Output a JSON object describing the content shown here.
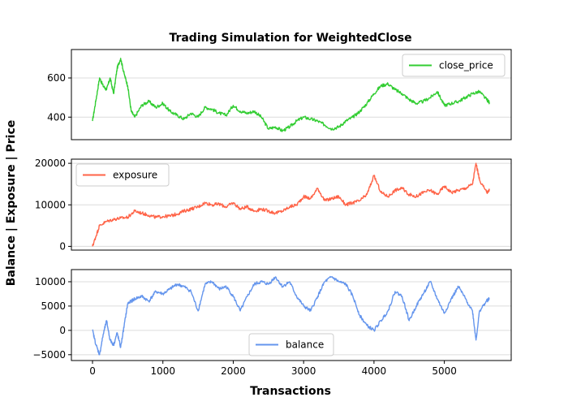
{
  "figure": {
    "title": "Trading Simulation for WeightedClose",
    "xlabel": "Transactions",
    "ylabel": "Balance | Exposure | Price"
  },
  "chart_data": [
    {
      "type": "line",
      "series": [
        {
          "name": "close_price",
          "color": "#32cd32"
        }
      ],
      "legend": "upper-right",
      "xlim": [
        -300,
        5950
      ],
      "ylim": [
        285,
        745
      ],
      "yticks": [
        400,
        600
      ],
      "grid": "horizontal",
      "x": [
        0,
        50,
        100,
        150,
        200,
        250,
        300,
        350,
        400,
        450,
        500,
        550,
        600,
        700,
        800,
        900,
        1000,
        1100,
        1200,
        1300,
        1400,
        1500,
        1600,
        1700,
        1800,
        1900,
        2000,
        2100,
        2200,
        2300,
        2400,
        2500,
        2600,
        2700,
        2800,
        2900,
        3000,
        3100,
        3200,
        3300,
        3400,
        3500,
        3600,
        3700,
        3800,
        3900,
        4000,
        4100,
        4200,
        4300,
        4400,
        4500,
        4600,
        4700,
        4800,
        4900,
        5000,
        5100,
        5200,
        5300,
        5400,
        5500,
        5600,
        5640
      ],
      "values": [
        380,
        490,
        600,
        560,
        540,
        600,
        520,
        650,
        700,
        620,
        560,
        430,
        400,
        460,
        480,
        450,
        470,
        430,
        410,
        390,
        420,
        400,
        450,
        440,
        420,
        410,
        460,
        430,
        420,
        430,
        400,
        340,
        350,
        330,
        350,
        380,
        400,
        390,
        380,
        360,
        340,
        350,
        380,
        400,
        430,
        470,
        520,
        560,
        570,
        540,
        520,
        490,
        470,
        480,
        500,
        530,
        460,
        470,
        480,
        500,
        520,
        530,
        490,
        475
      ]
    },
    {
      "type": "line",
      "series": [
        {
          "name": "exposure",
          "color": "#ff6347"
        }
      ],
      "legend": "upper-left",
      "xlim": [
        -300,
        5950
      ],
      "ylim": [
        -900,
        21000
      ],
      "yticks": [
        0,
        10000,
        20000
      ],
      "grid": "horizontal",
      "x": [
        0,
        50,
        100,
        200,
        300,
        400,
        500,
        600,
        700,
        800,
        900,
        1000,
        1100,
        1200,
        1300,
        1400,
        1500,
        1600,
        1700,
        1800,
        1900,
        2000,
        2100,
        2200,
        2300,
        2400,
        2500,
        2600,
        2700,
        2800,
        2900,
        3000,
        3100,
        3200,
        3300,
        3400,
        3500,
        3600,
        3700,
        3800,
        3900,
        4000,
        4100,
        4200,
        4300,
        4400,
        4500,
        4600,
        4700,
        4800,
        4900,
        5000,
        5100,
        5200,
        5300,
        5400,
        5450,
        5500,
        5600,
        5640
      ],
      "values": [
        0,
        2500,
        5000,
        6000,
        6500,
        6800,
        7000,
        8500,
        8000,
        7500,
        7000,
        7200,
        7300,
        7800,
        8500,
        9000,
        9500,
        10500,
        10000,
        10200,
        9500,
        10500,
        9000,
        9500,
        8500,
        9000,
        8500,
        8000,
        8500,
        9500,
        10000,
        12000,
        11500,
        14000,
        11000,
        11500,
        12000,
        10000,
        10500,
        11000,
        12500,
        17000,
        13000,
        12000,
        13500,
        14000,
        12500,
        12000,
        13000,
        13500,
        12500,
        14500,
        13000,
        13500,
        14000,
        15000,
        20000,
        16000,
        13000,
        13500
      ]
    },
    {
      "type": "line",
      "series": [
        {
          "name": "balance",
          "color": "#6495ed"
        }
      ],
      "legend": "lower-center",
      "xlim": [
        -300,
        5950
      ],
      "ylim": [
        -6200,
        12500
      ],
      "yticks": [
        -5000,
        0,
        5000,
        10000
      ],
      "grid": "horizontal",
      "xticks": [
        0,
        1000,
        2000,
        3000,
        4000,
        5000
      ],
      "x": [
        0,
        50,
        100,
        150,
        200,
        250,
        300,
        350,
        400,
        450,
        500,
        550,
        600,
        700,
        800,
        900,
        1000,
        1100,
        1200,
        1300,
        1400,
        1500,
        1600,
        1700,
        1800,
        1900,
        2000,
        2100,
        2200,
        2300,
        2400,
        2500,
        2600,
        2700,
        2800,
        2900,
        3000,
        3100,
        3200,
        3300,
        3400,
        3500,
        3600,
        3700,
        3800,
        3900,
        4000,
        4100,
        4200,
        4300,
        4400,
        4500,
        4600,
        4700,
        4800,
        4900,
        5000,
        5100,
        5200,
        5300,
        5400,
        5450,
        5500,
        5600,
        5640
      ],
      "values": [
        0,
        -3000,
        -5000,
        -1000,
        2000,
        -2000,
        -3000,
        -500,
        -3500,
        1000,
        5500,
        6000,
        6500,
        7000,
        6000,
        8000,
        7500,
        8500,
        9500,
        9000,
        8000,
        4000,
        9500,
        10000,
        8500,
        9000,
        7000,
        4000,
        7000,
        9500,
        10000,
        9500,
        11000,
        9000,
        10000,
        7000,
        5000,
        4000,
        7000,
        10000,
        11000,
        10000,
        9500,
        7000,
        3000,
        1000,
        0,
        2000,
        4000,
        8000,
        7000,
        2000,
        5000,
        7500,
        10000,
        6500,
        3500,
        6500,
        9000,
        6500,
        4000,
        -2000,
        4000,
        6000,
        6500
      ]
    }
  ]
}
